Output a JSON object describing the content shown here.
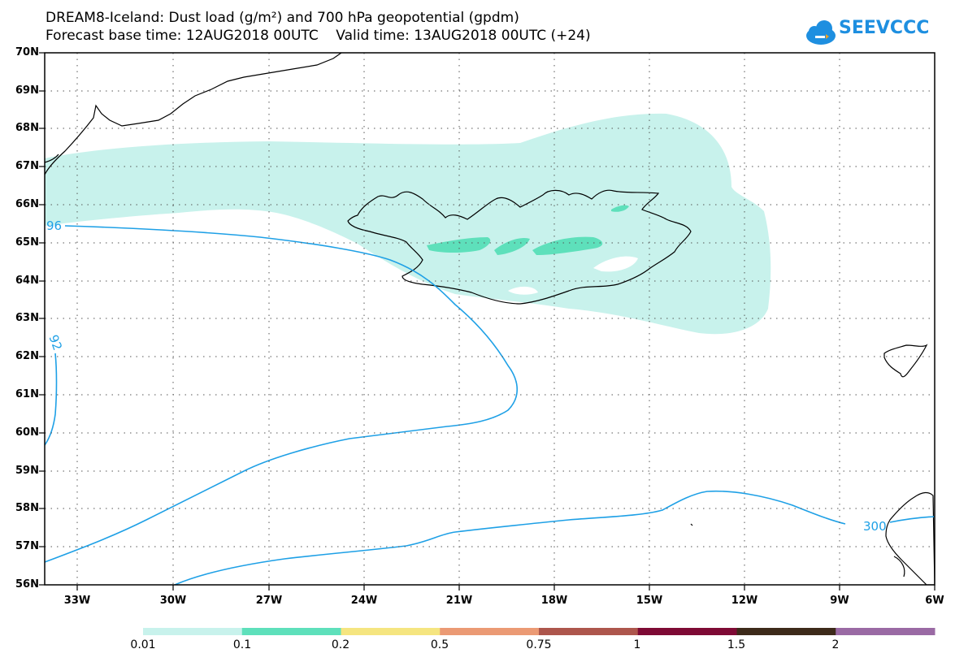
{
  "title": {
    "line1": "DREAM8-Iceland: Dust load (g/m²) and 700 hPa geopotential (gpdm)",
    "line2": "Forecast base time: 12AUG2018 00UTC    Valid time: 13AUG2018 00UTC (+24)"
  },
  "logo": {
    "text": "SEEVCCC",
    "color": "#1e8fe0"
  },
  "map": {
    "lat_labels": [
      "70N",
      "69N",
      "68N",
      "67N",
      "66N",
      "65N",
      "64N",
      "63N",
      "62N",
      "61N",
      "60N",
      "59N",
      "58N",
      "57N",
      "56N"
    ],
    "lon_labels": [
      "33W",
      "30W",
      "27W",
      "24W",
      "21W",
      "18W",
      "15W",
      "12W",
      "9W",
      "6W"
    ],
    "lat_range": [
      56,
      70
    ],
    "lon_range": [
      -34.1,
      -6.0
    ],
    "contour_labels": [
      "96",
      "92",
      "300"
    ],
    "contour_color": "#1ea0e6",
    "coast_color": "#000000"
  },
  "colorbar": {
    "labels": [
      "0.01",
      "0.1",
      "0.2",
      "0.5",
      "0.75",
      "1",
      "1.5",
      "2"
    ],
    "colors": [
      "#c8f2ec",
      "#5ee0bb",
      "#f5e580",
      "#eb9a74",
      "#ad564c",
      "#7e0a35",
      "#3d2a1a",
      "#9a6aa4"
    ]
  }
}
